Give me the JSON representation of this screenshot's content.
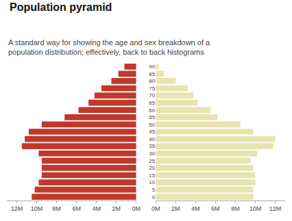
{
  "chart_data": {
    "type": "bar",
    "orientation": "horizontal",
    "title": "Population pyramid",
    "subtitle": "A standard way for showing the age and sex breakdown of a\npopulation distribution; effectively, back to back histograms",
    "categories": [
      "0",
      "5",
      "10",
      "15",
      "20",
      "25",
      "30",
      "35",
      "40",
      "45",
      "50",
      "55",
      "60",
      "65",
      "70",
      "75",
      "80",
      "85",
      "90"
    ],
    "series": [
      {
        "color": "#c0392b",
        "values": [
          10.5,
          10.2,
          9.8,
          9.5,
          9.5,
          9.5,
          9.8,
          11.5,
          11.2,
          10.8,
          9.5,
          7.2,
          5.8,
          4.8,
          4.2,
          3.5,
          2.5,
          1.8,
          1.2
        ]
      },
      {
        "color": "#e8e4b0",
        "values": [
          9.8,
          9.8,
          10.0,
          10.0,
          9.8,
          9.5,
          10.2,
          11.8,
          12.0,
          9.8,
          8.5,
          6.2,
          5.5,
          4.2,
          3.8,
          3.2,
          2.0,
          0.8,
          0.3
        ]
      }
    ],
    "xlim": [
      0,
      13
    ],
    "xticks": [
      {
        "value": 0,
        "label": "0M"
      },
      {
        "value": 2,
        "label": "2M"
      },
      {
        "value": 4,
        "label": "4M"
      },
      {
        "value": 6,
        "label": "6M"
      },
      {
        "value": 8,
        "label": "8M"
      },
      {
        "value": 10,
        "label": "10M"
      },
      {
        "value": 12,
        "label": "12M"
      }
    ],
    "grid": false
  }
}
